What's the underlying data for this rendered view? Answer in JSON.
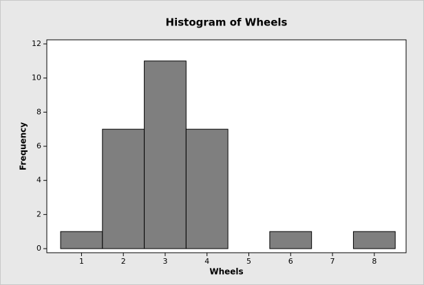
{
  "chart_data": {
    "type": "histogram",
    "title": "Histogram of Wheels",
    "x_label": "Wheels",
    "y_label": "Frequency",
    "bins": [
      0.5,
      1.5,
      2.5,
      3.5,
      4.5,
      5.5,
      6.5,
      7.5,
      8.5
    ],
    "values": [
      1,
      7,
      11,
      7,
      0,
      1,
      0,
      1
    ],
    "color": "#7f7f7f",
    "xlim": [
      0.17,
      8.76
    ],
    "xticks": [
      1,
      2,
      3,
      4,
      5,
      6,
      7,
      8
    ],
    "ylim": [
      -0.24,
      12.24
    ],
    "yticks": [
      0,
      2,
      4,
      6,
      8,
      10,
      12
    ]
  }
}
